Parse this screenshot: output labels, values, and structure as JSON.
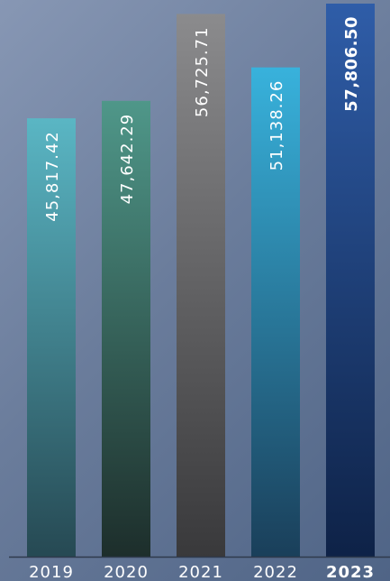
{
  "chart_data": {
    "type": "bar",
    "categories": [
      "2019",
      "2020",
      "2021",
      "2022",
      "2023"
    ],
    "values": [
      45817.42,
      47642.29,
      56725.71,
      51138.26,
      57806.5
    ],
    "value_labels": [
      "45,817.42",
      "47,642.29",
      "56,725.71",
      "51,138.26",
      "57,806.50"
    ],
    "ylim": [
      0,
      57806.5
    ],
    "grid": false,
    "legend": "none",
    "highlight_index": 4,
    "bar_colors": [
      {
        "top": "#5ab6c4",
        "bottom": "#264953"
      },
      {
        "top": "#4f9789",
        "bottom": "#1d2e2b"
      },
      {
        "top": "#8b8b8d",
        "bottom": "#39393b"
      },
      {
        "top": "#38b2dc",
        "bottom": "#1a3f5a"
      },
      {
        "top": "#2f5da8",
        "bottom": "#0e2247"
      }
    ],
    "baseline_color": "#2f3a4c",
    "text_color": "#ffffff"
  }
}
